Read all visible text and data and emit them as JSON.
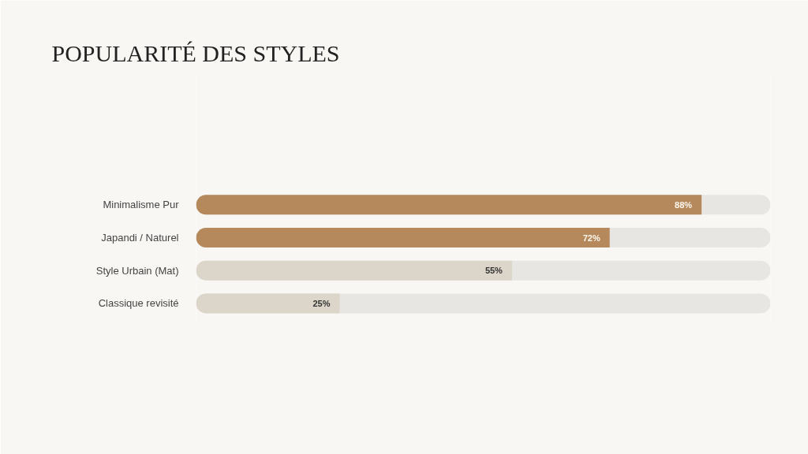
{
  "chart_data": {
    "type": "bar",
    "orientation": "horizontal",
    "title": "POPULARITÉ DES STYLES",
    "categories": [
      "Minimalisme Pur",
      "Japandi / Naturel",
      "Style Urbain (Mat)",
      "Classique revisité"
    ],
    "values": [
      88,
      72,
      55,
      25
    ],
    "colors": [
      "#b5895b",
      "#b5895b",
      "#dcd5ca",
      "#dcd5ca"
    ],
    "value_labels": [
      "88%",
      "72%",
      "55%",
      "25%"
    ],
    "xlim": [
      0,
      100
    ],
    "tick_labels": "y"
  }
}
